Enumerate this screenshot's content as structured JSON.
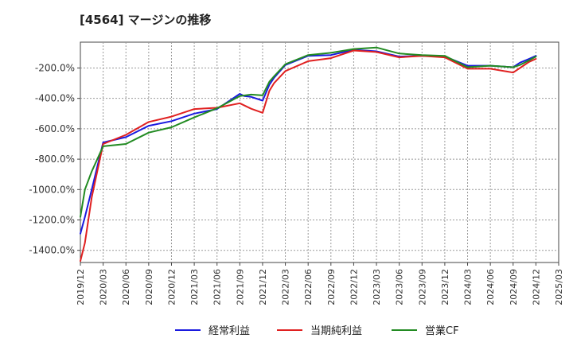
{
  "chart_data": {
    "type": "line",
    "title": "[4564]  マージンの推移",
    "xlabel": "",
    "ylabel": "",
    "ylim": [
      -1480,
      -30
    ],
    "yticks": [
      -200,
      -400,
      -600,
      -800,
      -1000,
      -1200,
      -1400
    ],
    "ytick_labels": [
      "-200.0%",
      "-400.0%",
      "-600.0%",
      "-800.0%",
      "-1000.0%",
      "-1200.0%",
      "-1400.0%"
    ],
    "x_ticks": [
      "2019/12",
      "2020/03",
      "2020/06",
      "2020/09",
      "2020/12",
      "2021/03",
      "2021/06",
      "2021/09",
      "2021/12",
      "2022/03",
      "2022/06",
      "2022/09",
      "2022/12",
      "2023/03",
      "2023/06",
      "2023/09",
      "2023/12",
      "2024/03",
      "2024/06",
      "2024/09",
      "2024/12",
      "2025/03"
    ],
    "grid": true,
    "legend_position": "bottom",
    "series": [
      {
        "name": "経常利益",
        "color": "#1a1adf",
        "points": [
          [
            0,
            -1290
          ],
          [
            0.2,
            -1180
          ],
          [
            0.5,
            -1000
          ],
          [
            1,
            -690
          ],
          [
            2,
            -655
          ],
          [
            3,
            -580
          ],
          [
            4,
            -550
          ],
          [
            5,
            -500
          ],
          [
            6,
            -470
          ],
          [
            7,
            -370
          ],
          [
            7.2,
            -385
          ],
          [
            7.5,
            -390
          ],
          [
            8,
            -415
          ],
          [
            8.3,
            -310
          ],
          [
            8.5,
            -265
          ],
          [
            9,
            -180
          ],
          [
            10,
            -120
          ],
          [
            11,
            -115
          ],
          [
            12,
            -80
          ],
          [
            13,
            -90
          ],
          [
            14,
            -125
          ],
          [
            15,
            -120
          ],
          [
            16,
            -125
          ],
          [
            17,
            -185
          ],
          [
            18,
            -185
          ],
          [
            19,
            -195
          ],
          [
            19.3,
            -165
          ],
          [
            19.7,
            -140
          ],
          [
            20,
            -120
          ]
        ]
      },
      {
        "name": "当期純利益",
        "color": "#e02020",
        "points": [
          [
            0,
            -1470
          ],
          [
            0.2,
            -1350
          ],
          [
            0.5,
            -1050
          ],
          [
            1,
            -700
          ],
          [
            2,
            -640
          ],
          [
            3,
            -555
          ],
          [
            4,
            -520
          ],
          [
            5,
            -470
          ],
          [
            6,
            -462
          ],
          [
            7,
            -432
          ],
          [
            7.5,
            -468
          ],
          [
            8,
            -495
          ],
          [
            8.3,
            -350
          ],
          [
            8.5,
            -300
          ],
          [
            9,
            -220
          ],
          [
            10,
            -155
          ],
          [
            11,
            -135
          ],
          [
            12,
            -85
          ],
          [
            13,
            -95
          ],
          [
            14,
            -130
          ],
          [
            15,
            -120
          ],
          [
            16,
            -130
          ],
          [
            17,
            -205
          ],
          [
            18,
            -205
          ],
          [
            19,
            -230
          ],
          [
            19.3,
            -200
          ],
          [
            19.7,
            -160
          ],
          [
            20,
            -140
          ]
        ]
      },
      {
        "name": "営業CF",
        "color": "#228b22",
        "points": [
          [
            0,
            -1180
          ],
          [
            0.2,
            -1000
          ],
          [
            0.5,
            -880
          ],
          [
            1,
            -715
          ],
          [
            2,
            -700
          ],
          [
            3,
            -625
          ],
          [
            4,
            -590
          ],
          [
            5,
            -525
          ],
          [
            6,
            -465
          ],
          [
            7,
            -385
          ],
          [
            7.5,
            -375
          ],
          [
            8,
            -380
          ],
          [
            8.3,
            -290
          ],
          [
            8.5,
            -255
          ],
          [
            9,
            -175
          ],
          [
            10,
            -115
          ],
          [
            11,
            -100
          ],
          [
            12,
            -75
          ],
          [
            13,
            -65
          ],
          [
            14,
            -105
          ],
          [
            15,
            -115
          ],
          [
            16,
            -120
          ],
          [
            17,
            -195
          ],
          [
            18,
            -185
          ],
          [
            19,
            -195
          ],
          [
            19.3,
            -180
          ],
          [
            19.7,
            -150
          ],
          [
            20,
            -125
          ]
        ]
      }
    ]
  }
}
